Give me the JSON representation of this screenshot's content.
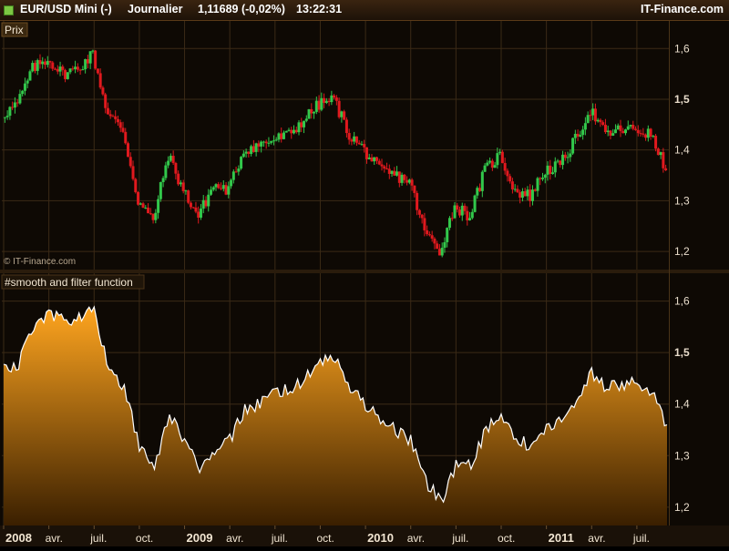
{
  "header": {
    "symbol": "EUR/USD Mini (-)",
    "period": "Journalier",
    "quote": "1,11689 (-0,02%)",
    "time": "13:22:31",
    "brand": "IT-Finance.com"
  },
  "colors": {
    "background": "#0e0904",
    "grid": "#3b2a16",
    "up_candle": "#32c84b",
    "down_candle": "#e0191e",
    "area_top": "#ffa51f",
    "area_bottom": "#3a1f00",
    "area_line": "#ffffff"
  },
  "chart_data": [
    {
      "type": "candlestick",
      "label": "Prix",
      "watermark": "© IT-Finance.com",
      "ylim": [
        1.175,
        1.64
      ],
      "yticks": [
        "1,6",
        "1,5",
        "1,4",
        "1,3",
        "1,2"
      ],
      "ytick_values": [
        1.6,
        1.5,
        1.4,
        1.3,
        1.2
      ],
      "x": [
        "2008-01",
        "2008-02",
        "2008-03",
        "2008-04",
        "2008-05",
        "2008-06",
        "2008-07",
        "2008-08",
        "2008-09",
        "2008-10",
        "2008-11",
        "2008-12",
        "2009-01",
        "2009-02",
        "2009-03",
        "2009-04",
        "2009-05",
        "2009-06",
        "2009-07",
        "2009-08",
        "2009-09",
        "2009-10",
        "2009-11",
        "2009-12",
        "2010-01",
        "2010-02",
        "2010-03",
        "2010-04",
        "2010-05",
        "2010-06",
        "2010-07",
        "2010-08",
        "2010-09",
        "2010-10",
        "2010-11",
        "2010-12",
        "2011-01",
        "2011-02",
        "2011-03",
        "2011-04",
        "2011-05",
        "2011-06",
        "2011-07",
        "2011-08",
        "2011-09"
      ],
      "values": [
        1.47,
        1.49,
        1.56,
        1.58,
        1.55,
        1.56,
        1.59,
        1.47,
        1.44,
        1.3,
        1.26,
        1.39,
        1.32,
        1.27,
        1.33,
        1.32,
        1.4,
        1.41,
        1.42,
        1.43,
        1.46,
        1.49,
        1.5,
        1.43,
        1.4,
        1.36,
        1.35,
        1.34,
        1.24,
        1.2,
        1.29,
        1.27,
        1.36,
        1.39,
        1.32,
        1.31,
        1.36,
        1.37,
        1.42,
        1.48,
        1.43,
        1.44,
        1.44,
        1.43,
        1.36
      ]
    },
    {
      "type": "area",
      "label": "#smooth and filter function",
      "ylim": [
        1.175,
        1.64
      ],
      "yticks": [
        "1,6",
        "1,5",
        "1,4",
        "1,3",
        "1,2"
      ],
      "ytick_values": [
        1.6,
        1.5,
        1.4,
        1.3,
        1.2
      ],
      "xlabels": [
        "2008",
        "avr.",
        "juil.",
        "oct.",
        "2009",
        "avr.",
        "juil.",
        "oct.",
        "2010",
        "avr.",
        "juil.",
        "oct.",
        "2011",
        "avr.",
        "juil."
      ],
      "xlabel_bold": [
        "2008",
        "2009",
        "2010",
        "2011"
      ],
      "x": [
        "2008-01",
        "2008-02",
        "2008-03",
        "2008-04",
        "2008-05",
        "2008-06",
        "2008-07",
        "2008-08",
        "2008-09",
        "2008-10",
        "2008-11",
        "2008-12",
        "2009-01",
        "2009-02",
        "2009-03",
        "2009-04",
        "2009-05",
        "2009-06",
        "2009-07",
        "2009-08",
        "2009-09",
        "2009-10",
        "2009-11",
        "2009-12",
        "2010-01",
        "2010-02",
        "2010-03",
        "2010-04",
        "2010-05",
        "2010-06",
        "2010-07",
        "2010-08",
        "2010-09",
        "2010-10",
        "2010-11",
        "2010-12",
        "2011-01",
        "2011-02",
        "2011-03",
        "2011-04",
        "2011-05",
        "2011-06",
        "2011-07",
        "2011-08",
        "2011-09"
      ],
      "values": [
        1.47,
        1.48,
        1.55,
        1.58,
        1.56,
        1.57,
        1.58,
        1.47,
        1.43,
        1.32,
        1.27,
        1.38,
        1.33,
        1.27,
        1.31,
        1.33,
        1.39,
        1.4,
        1.42,
        1.43,
        1.45,
        1.48,
        1.49,
        1.43,
        1.4,
        1.37,
        1.35,
        1.33,
        1.25,
        1.21,
        1.28,
        1.28,
        1.35,
        1.38,
        1.33,
        1.32,
        1.35,
        1.37,
        1.41,
        1.46,
        1.43,
        1.44,
        1.44,
        1.42,
        1.36
      ]
    }
  ]
}
